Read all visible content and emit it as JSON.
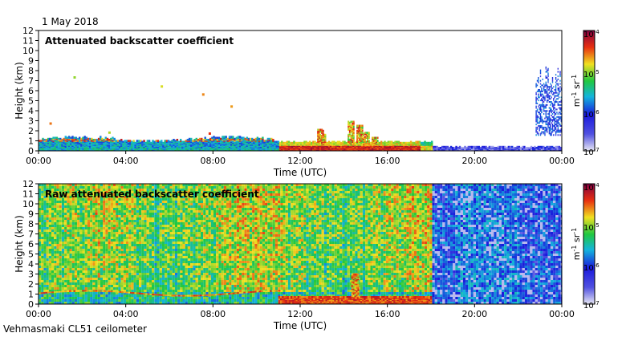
{
  "header": {
    "date": "1 May 2018"
  },
  "footer": {
    "caption": "Vehmasmaki CL51 ceilometer"
  },
  "colorbar": {
    "tick_labels": [
      "10",
      "10",
      "10",
      "10"
    ],
    "tick_exponents": [
      "-4",
      "-5",
      "-6",
      "-7"
    ],
    "unit": {
      "m": "m",
      "m_exp": "-1",
      "sr": " sr",
      "sr_exp": "-1"
    },
    "colors": [
      "#e8e8f4",
      "#1a1adc",
      "#14b4dc",
      "#20c840",
      "#f0e020",
      "#e83010",
      "#800040"
    ],
    "scale": "log"
  },
  "chart_data": [
    {
      "type": "heatmap",
      "title": "Attenuated backscatter coefficient",
      "xlabel": "Time (UTC)",
      "ylabel": "Height (km)",
      "xlim": [
        "00:00",
        "24:00"
      ],
      "ylim": [
        0,
        12
      ],
      "xticks": [
        "00:00",
        "04:00",
        "08:00",
        "12:00",
        "16:00",
        "20:00",
        "00:00"
      ],
      "yticks": [
        "0",
        "1",
        "2",
        "3",
        "4",
        "5",
        "6",
        "7",
        "8",
        "9",
        "10",
        "11",
        "12"
      ],
      "colorscale": "log",
      "clim": [
        1e-07,
        0.0001
      ],
      "features": [
        {
          "name": "boundary-layer",
          "t": [
            0,
            11
          ],
          "h": [
            0,
            1.3
          ],
          "level": "low"
        },
        {
          "name": "strong-layer",
          "t": [
            11,
            18
          ],
          "h": [
            0,
            0.8
          ],
          "level": "high"
        },
        {
          "name": "convective-plume",
          "t": [
            14.3,
            15.2
          ],
          "h": [
            0,
            3.0
          ],
          "level": "high"
        },
        {
          "name": "upper-cloud",
          "t": [
            22.8,
            24
          ],
          "h": [
            1.5,
            8.5
          ],
          "level": "low"
        }
      ]
    },
    {
      "type": "heatmap",
      "title": "Raw attenuated backscatter coefficient",
      "xlabel": "Time (UTC)",
      "ylabel": "Height (km)",
      "xlim": [
        "00:00",
        "24:00"
      ],
      "ylim": [
        0,
        12
      ],
      "xticks": [
        "00:00",
        "04:00",
        "08:00",
        "12:00",
        "16:00",
        "20:00",
        "00:00"
      ],
      "yticks": [
        "0",
        "1",
        "2",
        "3",
        "4",
        "5",
        "6",
        "7",
        "8",
        "9",
        "10",
        "11",
        "12"
      ],
      "colorscale": "log",
      "clim": [
        1e-07,
        0.0001
      ],
      "features": [
        {
          "name": "noise-field",
          "t": [
            0,
            18
          ],
          "h": [
            1,
            12
          ],
          "level": "medium"
        },
        {
          "name": "clear-region",
          "t": [
            18,
            24
          ],
          "h": [
            0,
            12
          ],
          "level": "low"
        },
        {
          "name": "boundary-layer",
          "t": [
            11,
            18
          ],
          "h": [
            0,
            0.8
          ],
          "level": "high"
        }
      ]
    }
  ]
}
